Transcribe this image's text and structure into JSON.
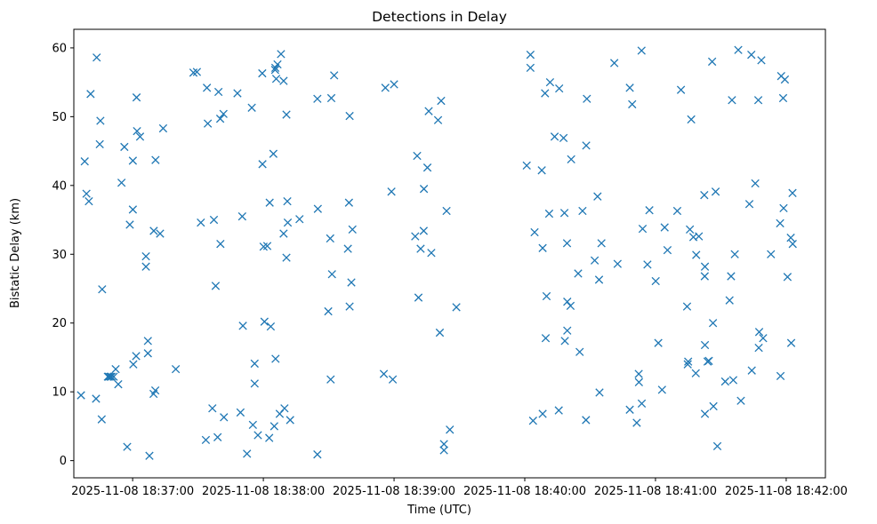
{
  "chart_data": {
    "type": "scatter",
    "title": "Detections in Delay",
    "xlabel": "Time (UTC)",
    "ylabel": "Bistatic Delay (km)",
    "x_unit": "seconds since 2025-11-08 18:37:00",
    "xlim": [
      -27,
      318
    ],
    "ylim": [
      -2.5,
      62.7
    ],
    "x_ticks": [
      {
        "value": 0,
        "label": "2025-11-08 18:37:00"
      },
      {
        "value": 60,
        "label": "2025-11-08 18:38:00"
      },
      {
        "value": 120,
        "label": "2025-11-08 18:39:00"
      },
      {
        "value": 180,
        "label": "2025-11-08 18:40:00"
      },
      {
        "value": 240,
        "label": "2025-11-08 18:41:00"
      },
      {
        "value": 300,
        "label": "2025-11-08 18:42:00"
      }
    ],
    "y_ticks": [
      0,
      10,
      20,
      30,
      40,
      50,
      60
    ],
    "marker": "x",
    "color": "#1f77b4",
    "grid": false,
    "points": [
      [
        -23.7,
        9.5
      ],
      [
        -22,
        43.5
      ],
      [
        -21.2,
        38.8
      ],
      [
        -20.1,
        37.7
      ],
      [
        -19.3,
        53.3
      ],
      [
        -16.8,
        9
      ],
      [
        -16.5,
        58.6
      ],
      [
        -14.8,
        49.4
      ],
      [
        -15.1,
        46
      ],
      [
        -14.2,
        6
      ],
      [
        -14,
        24.9
      ],
      [
        -11.4,
        12.2
      ],
      [
        -10.9,
        12.2
      ],
      [
        -10.2,
        12.2
      ],
      [
        -9.7,
        12.2
      ],
      [
        -8.7,
        12.2
      ],
      [
        -7.8,
        13.3
      ],
      [
        -6.6,
        11.1
      ],
      [
        -5.1,
        40.4
      ],
      [
        -3.8,
        45.6
      ],
      [
        -2.5,
        2
      ],
      [
        -1.3,
        34.3
      ],
      [
        0.1,
        43.6
      ],
      [
        0.1,
        36.5
      ],
      [
        0.3,
        14
      ],
      [
        1.6,
        15.2
      ],
      [
        1.8,
        52.8
      ],
      [
        2,
        47.9
      ],
      [
        3.4,
        47.1
      ],
      [
        6.1,
        28.2
      ],
      [
        6.1,
        29.7
      ],
      [
        7,
        17.4
      ],
      [
        7,
        15.6
      ],
      [
        7.7,
        0.7
      ],
      [
        9.7,
        33.4
      ],
      [
        9.6,
        9.7
      ],
      [
        10.4,
        10.2
      ],
      [
        10.5,
        43.7
      ],
      [
        12.6,
        33
      ],
      [
        14,
        48.3
      ],
      [
        19.8,
        13.3
      ],
      [
        27.9,
        56.4
      ],
      [
        29.5,
        56.5
      ],
      [
        31.3,
        34.6
      ],
      [
        33.6,
        3
      ],
      [
        34.1,
        54.2
      ],
      [
        34.5,
        49
      ],
      [
        36.6,
        7.6
      ],
      [
        37.3,
        35
      ],
      [
        38.1,
        25.4
      ],
      [
        39,
        3.4
      ],
      [
        39.4,
        53.6
      ],
      [
        40.2,
        49.7
      ],
      [
        40.3,
        31.5
      ],
      [
        41.7,
        50.4
      ],
      [
        41.9,
        6.3
      ],
      [
        48.1,
        53.4
      ],
      [
        49.5,
        7
      ],
      [
        50.3,
        35.5
      ],
      [
        50.6,
        19.6
      ],
      [
        52.5,
        1
      ],
      [
        54.7,
        51.3
      ],
      [
        55.2,
        5.2
      ],
      [
        56,
        14.1
      ],
      [
        56,
        11.2
      ],
      [
        57.5,
        3.7
      ],
      [
        59.5,
        56.3
      ],
      [
        59.6,
        43.1
      ],
      [
        60.1,
        31.1
      ],
      [
        60.5,
        20.2
      ],
      [
        61.8,
        31.2
      ],
      [
        62.7,
        3.3
      ],
      [
        62.9,
        37.5
      ],
      [
        63.4,
        19.5
      ],
      [
        64.6,
        44.6
      ],
      [
        65,
        5
      ],
      [
        65.6,
        14.8
      ],
      [
        65.5,
        57.1
      ],
      [
        65.4,
        56.8
      ],
      [
        65.9,
        55.5
      ],
      [
        66.5,
        57.6
      ],
      [
        67.5,
        6.8
      ],
      [
        68.1,
        59.1
      ],
      [
        69.3,
        55.2
      ],
      [
        69.3,
        33
      ],
      [
        69.7,
        7.6
      ],
      [
        70.6,
        29.5
      ],
      [
        70.6,
        50.3
      ],
      [
        71,
        37.7
      ],
      [
        71.2,
        34.6
      ],
      [
        72.3,
        5.9
      ],
      [
        76.6,
        35.1
      ],
      [
        84.8,
        52.6
      ],
      [
        84.8,
        0.9
      ],
      [
        85,
        36.6
      ],
      [
        89.8,
        21.7
      ],
      [
        90.7,
        32.3
      ],
      [
        90.9,
        11.8
      ],
      [
        91.2,
        52.7
      ],
      [
        91.5,
        27.1
      ],
      [
        92.5,
        56
      ],
      [
        98.8,
        30.8
      ],
      [
        99.3,
        37.5
      ],
      [
        99.6,
        50.1
      ],
      [
        99.6,
        22.4
      ],
      [
        100.4,
        25.9
      ],
      [
        100.9,
        33.6
      ],
      [
        115.3,
        12.6
      ],
      [
        116,
        54.2
      ],
      [
        118.8,
        39.1
      ],
      [
        119.4,
        11.8
      ],
      [
        120,
        54.7
      ],
      [
        129.7,
        32.6
      ],
      [
        130.6,
        44.3
      ],
      [
        131.2,
        23.7
      ],
      [
        132.2,
        30.8
      ],
      [
        133.6,
        33.4
      ],
      [
        133.7,
        39.5
      ],
      [
        135.3,
        42.6
      ],
      [
        135.9,
        50.8
      ],
      [
        137.1,
        30.2
      ],
      [
        140.2,
        49.5
      ],
      [
        141,
        18.6
      ],
      [
        141.6,
        52.3
      ],
      [
        142.9,
        1.5
      ],
      [
        142.9,
        2.4
      ],
      [
        144.1,
        36.3
      ],
      [
        145.6,
        4.5
      ],
      [
        148.6,
        22.3
      ],
      [
        180.9,
        42.9
      ],
      [
        182.6,
        57.1
      ],
      [
        182.6,
        59
      ],
      [
        183.8,
        5.8
      ],
      [
        184.5,
        33.2
      ],
      [
        187.8,
        42.2
      ],
      [
        188.2,
        30.9
      ],
      [
        188.2,
        6.8
      ],
      [
        189.3,
        53.4
      ],
      [
        189.6,
        17.8
      ],
      [
        190,
        23.9
      ],
      [
        191.2,
        35.9
      ],
      [
        191.6,
        55
      ],
      [
        193.7,
        47.1
      ],
      [
        195.6,
        7.3
      ],
      [
        195.8,
        54.1
      ],
      [
        197.8,
        46.9
      ],
      [
        198.2,
        36
      ],
      [
        198.4,
        17.4
      ],
      [
        199.4,
        31.6
      ],
      [
        199.5,
        23.1
      ],
      [
        199.5,
        18.9
      ],
      [
        201,
        22.5
      ],
      [
        201.3,
        43.8
      ],
      [
        204.5,
        27.2
      ],
      [
        205.2,
        15.8
      ],
      [
        206.5,
        36.3
      ],
      [
        208.1,
        5.9
      ],
      [
        208.2,
        45.8
      ],
      [
        208.5,
        52.6
      ],
      [
        212.1,
        29.1
      ],
      [
        213.4,
        38.4
      ],
      [
        214.3,
        9.9
      ],
      [
        214.1,
        26.3
      ],
      [
        215.2,
        31.6
      ],
      [
        221.1,
        57.8
      ],
      [
        222.6,
        28.6
      ],
      [
        228.2,
        54.2
      ],
      [
        228.2,
        7.4
      ],
      [
        229.3,
        51.8
      ],
      [
        231.4,
        5.5
      ],
      [
        232.3,
        12.6
      ],
      [
        232.4,
        11.4
      ],
      [
        233.6,
        59.6
      ],
      [
        233.7,
        8.3
      ],
      [
        234.1,
        33.7
      ],
      [
        236.3,
        28.5
      ],
      [
        237.2,
        36.4
      ],
      [
        240.1,
        26.1
      ],
      [
        241.3,
        17.1
      ],
      [
        243,
        10.3
      ],
      [
        244.2,
        33.9
      ],
      [
        245.5,
        30.6
      ],
      [
        250,
        36.3
      ],
      [
        251.7,
        53.9
      ],
      [
        254.5,
        22.4
      ],
      [
        254.8,
        14
      ],
      [
        255,
        14.4
      ],
      [
        255.8,
        33.6
      ],
      [
        256.4,
        49.6
      ],
      [
        257.4,
        32.5
      ],
      [
        258.5,
        12.7
      ],
      [
        258.7,
        29.9
      ],
      [
        259.9,
        32.6
      ],
      [
        262.4,
        38.6
      ],
      [
        262.6,
        26.8
      ],
      [
        262.7,
        28.2
      ],
      [
        262.7,
        16.8
      ],
      [
        262.7,
        6.8
      ],
      [
        263.9,
        14.4
      ],
      [
        264.5,
        14.5
      ],
      [
        266,
        58
      ],
      [
        266.4,
        20
      ],
      [
        266.6,
        7.9
      ],
      [
        267.6,
        39.1
      ],
      [
        268.4,
        2.1
      ],
      [
        272,
        11.5
      ],
      [
        274,
        23.3
      ],
      [
        274.7,
        26.8
      ],
      [
        275.1,
        52.4
      ],
      [
        275.7,
        11.7
      ],
      [
        276.4,
        30
      ],
      [
        278,
        59.7
      ],
      [
        279.2,
        8.7
      ],
      [
        283.1,
        37.3
      ],
      [
        284,
        59
      ],
      [
        284.2,
        13.1
      ],
      [
        285.8,
        40.3
      ],
      [
        287.2,
        52.4
      ],
      [
        287.4,
        16.4
      ],
      [
        287.6,
        18.7
      ],
      [
        288.6,
        58.2
      ],
      [
        289.4,
        17.8
      ],
      [
        293,
        30
      ],
      [
        297.2,
        34.5
      ],
      [
        297.4,
        12.3
      ],
      [
        297.7,
        55.9
      ],
      [
        298.6,
        52.7
      ],
      [
        298.8,
        36.7
      ],
      [
        299.4,
        55.4
      ],
      [
        300.6,
        26.7
      ],
      [
        302.1,
        32.4
      ],
      [
        302.3,
        17.1
      ],
      [
        303,
        31.5
      ],
      [
        302.9,
        38.9
      ]
    ]
  }
}
